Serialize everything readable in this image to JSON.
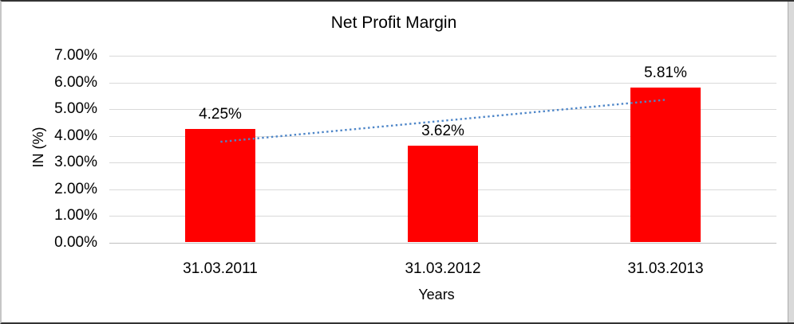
{
  "chart_data": {
    "type": "bar",
    "title": "Net Profit Margin",
    "xlabel": "Years",
    "ylabel": "IN (%)",
    "categories": [
      "31.03.2011",
      "31.03.2012",
      "31.03.2013"
    ],
    "values": [
      4.25,
      3.62,
      5.81
    ],
    "data_labels": [
      "4.25%",
      "3.62%",
      "5.81%"
    ],
    "ylim": [
      0,
      7
    ],
    "ytick_step": 1,
    "ytick_labels": [
      "0.00%",
      "1.00%",
      "2.00%",
      "3.00%",
      "4.00%",
      "5.00%",
      "6.00%",
      "7.00%"
    ],
    "grid": true,
    "legend": false,
    "bar_color": "#ff0000",
    "trendline": {
      "type": "linear",
      "style": "dotted",
      "color": "#4e86c8",
      "start_value": 3.78,
      "end_value": 5.35
    }
  }
}
